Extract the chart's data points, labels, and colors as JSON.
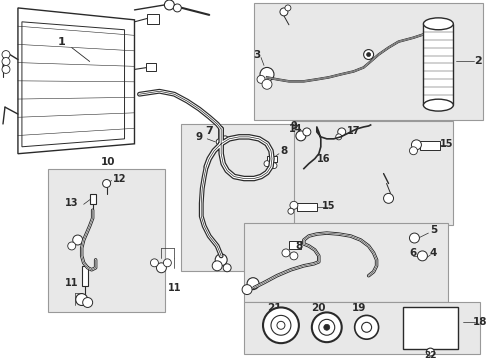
{
  "background_color": "#ffffff",
  "line_color": "#2a2a2a",
  "gray_box_color": "#e8e8e8",
  "fig_width": 4.89,
  "fig_height": 3.6,
  "dpi": 100
}
